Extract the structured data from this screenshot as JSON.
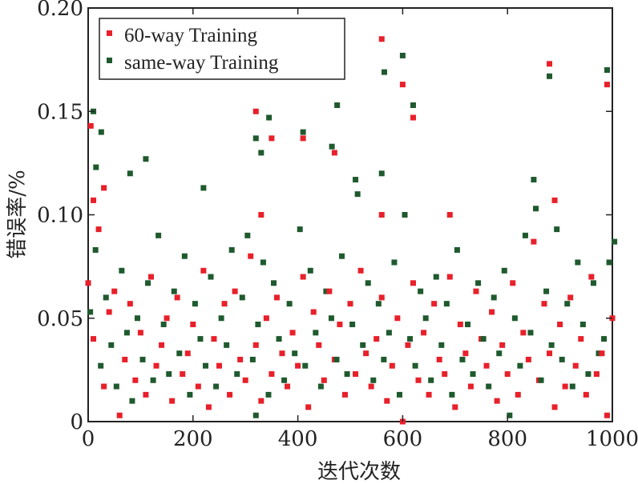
{
  "chart_data": {
    "type": "scatter",
    "title": "",
    "xlabel": "迭代次数",
    "ylabel": "错误率/%",
    "xlim": [
      0,
      1000
    ],
    "ylim": [
      0,
      0.2
    ],
    "xticks": [
      "0",
      "200",
      "400",
      "600",
      "800",
      "1000"
    ],
    "xtick_values": [
      0,
      200,
      400,
      600,
      800,
      1000
    ],
    "yticks": [
      "0",
      "0.05",
      "0.10",
      "0.15",
      "0.20"
    ],
    "ytick_values": [
      0,
      0.05,
      0.1,
      0.15,
      0.2
    ],
    "grid": false,
    "legend_position": "top-left",
    "series": [
      {
        "name": "60-way Training",
        "color": "#e8202a",
        "bulk_x_step": 10,
        "bulk_y": [
          0.067,
          0.04,
          0.093,
          0.017,
          0.053,
          0.063,
          0.003,
          0.03,
          0.057,
          0.02,
          0.043,
          0.013,
          0.07,
          0.027,
          0.037,
          0.05,
          0.01,
          0.06,
          0.023,
          0.033,
          0.047,
          0.017,
          0.073,
          0.007,
          0.04,
          0.027,
          0.057,
          0.013,
          0.063,
          0.03,
          0.02,
          0.08,
          0.037,
          0.01,
          0.05,
          0.023,
          0.06,
          0.033,
          0.017,
          0.043,
          0.027,
          0.07,
          0.007,
          0.053,
          0.037,
          0.02,
          0.063,
          0.03,
          0.047,
          0.013,
          0.057,
          0.023,
          0.073,
          0.033,
          0.017,
          0.04,
          0.06,
          0.01,
          0.027,
          0.05,
          0.0,
          0.037,
          0.067,
          0.02,
          0.043,
          0.013,
          0.057,
          0.03,
          0.023,
          0.07,
          0.007,
          0.047,
          0.033,
          0.017,
          0.063,
          0.04,
          0.027,
          0.053,
          0.01,
          0.037,
          0.023,
          0.067,
          0.013,
          0.043,
          0.03,
          0.087,
          0.02,
          0.057,
          0.033,
          0.007,
          0.047,
          0.017,
          0.06,
          0.027,
          0.04,
          0.013,
          0.07,
          0.023,
          0.033,
          0.003,
          0.05
        ],
        "outliers": [
          [
            5,
            0.143
          ],
          [
            10,
            0.107
          ],
          [
            30,
            0.113
          ],
          [
            320,
            0.15
          ],
          [
            330,
            0.1
          ],
          [
            350,
            0.137
          ],
          [
            410,
            0.137
          ],
          [
            470,
            0.13
          ],
          [
            560,
            0.185
          ],
          [
            560,
            0.1
          ],
          [
            600,
            0.163
          ],
          [
            620,
            0.147
          ],
          [
            690,
            0.1
          ],
          [
            880,
            0.173
          ],
          [
            890,
            0.107
          ],
          [
            990,
            0.163
          ]
        ]
      },
      {
        "name": "same-way Training",
        "color": "#1f5a2e",
        "bulk_x_step": 10,
        "bulk_y": [
          0.053,
          0.083,
          0.027,
          0.06,
          0.037,
          0.017,
          0.073,
          0.043,
          0.01,
          0.05,
          0.03,
          0.067,
          0.02,
          0.09,
          0.047,
          0.023,
          0.063,
          0.033,
          0.08,
          0.013,
          0.057,
          0.04,
          0.027,
          0.07,
          0.017,
          0.05,
          0.037,
          0.083,
          0.023,
          0.06,
          0.09,
          0.03,
          0.047,
          0.077,
          0.013,
          0.067,
          0.04,
          0.02,
          0.057,
          0.033,
          0.093,
          0.027,
          0.073,
          0.043,
          0.017,
          0.063,
          0.05,
          0.03,
          0.08,
          0.023,
          0.047,
          0.11,
          0.037,
          0.067,
          0.02,
          0.057,
          0.03,
          0.043,
          0.077,
          0.013,
          0.1,
          0.04,
          0.027,
          0.063,
          0.05,
          0.02,
          0.07,
          0.037,
          0.057,
          0.013,
          0.083,
          0.03,
          0.047,
          0.023,
          0.067,
          0.04,
          0.017,
          0.06,
          0.033,
          0.073,
          0.003,
          0.05,
          0.027,
          0.09,
          0.043,
          0.103,
          0.02,
          0.063,
          0.037,
          0.093,
          0.03,
          0.057,
          0.017,
          0.077,
          0.047,
          0.023,
          0.067,
          0.033,
          0.04,
          0.077,
          0.087
        ],
        "outliers": [
          [
            10,
            0.15
          ],
          [
            15,
            0.123
          ],
          [
            25,
            0.14
          ],
          [
            80,
            0.12
          ],
          [
            110,
            0.127
          ],
          [
            220,
            0.113
          ],
          [
            320,
            0.137
          ],
          [
            330,
            0.13
          ],
          [
            345,
            0.147
          ],
          [
            320,
            0.003
          ],
          [
            410,
            0.14
          ],
          [
            465,
            0.133
          ],
          [
            475,
            0.153
          ],
          [
            510,
            0.117
          ],
          [
            560,
            0.12
          ],
          [
            565,
            0.169
          ],
          [
            600,
            0.177
          ],
          [
            620,
            0.153
          ],
          [
            850,
            0.117
          ],
          [
            880,
            0.167
          ],
          [
            990,
            0.17
          ]
        ]
      }
    ]
  }
}
